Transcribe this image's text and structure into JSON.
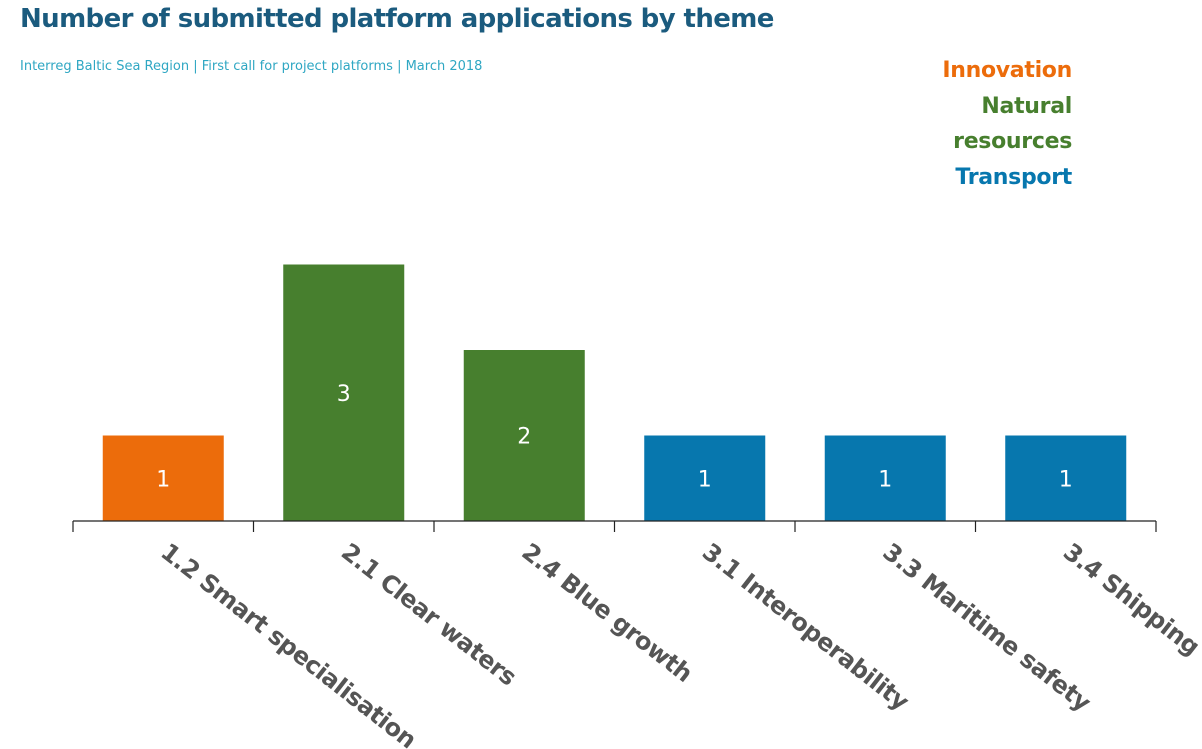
{
  "chart_data": {
    "type": "bar",
    "title": "Number of submitted platform applications by theme",
    "subtitle": "Interreg Baltic Sea Region | First call for project platforms | March 2018",
    "categories": [
      "1.2 Smart specialisation",
      "2.1 Clear waters",
      "2.4 Blue growth",
      "3.1 Interoperability",
      "3.3 Maritime safety",
      "3.4 Shipping"
    ],
    "values": [
      1,
      3,
      2,
      1,
      1,
      1
    ],
    "themes": [
      "Innovation",
      "Natural resources",
      "Natural resources",
      "Transport",
      "Transport",
      "Transport"
    ],
    "legend": [
      {
        "label": "Innovation",
        "color": "#ec6c0b"
      },
      {
        "label": "Natural resources",
        "color": "#477f2e"
      },
      {
        "label": "Transport",
        "color": "#0777ae"
      }
    ],
    "legend_position": "top-right",
    "ylim": [
      0,
      3
    ],
    "xlabel": "",
    "ylabel": "",
    "grid": false,
    "data_labels": true
  }
}
